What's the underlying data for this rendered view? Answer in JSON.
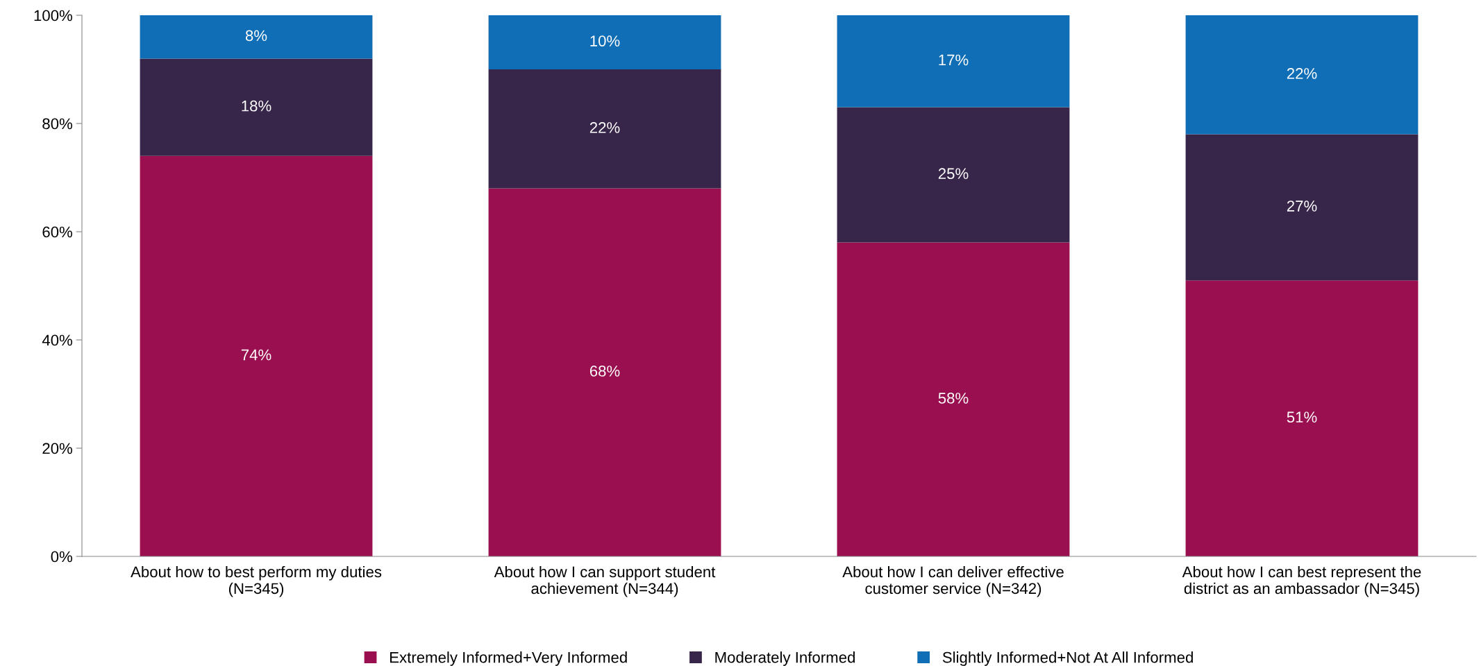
{
  "chart_data": {
    "type": "bar",
    "stacked": true,
    "categories": [
      "About how to best perform my duties\n(N=345)",
      "About how I can support student\nachievement (N=344)",
      "About how I can deliver effective\ncustomer service (N=342)",
      "About how I can best represent the\ndistrict as an ambassador (N=345)"
    ],
    "series": [
      {
        "name": "Extremely Informed+Very Informed",
        "color": "#990f4f",
        "values": [
          74,
          68,
          58,
          51
        ],
        "value_labels": [
          "74%",
          "68%",
          "58%",
          "51%"
        ]
      },
      {
        "name": "Moderately Informed",
        "color": "#37254a",
        "values": [
          18,
          22,
          25,
          27
        ],
        "value_labels": [
          "18%",
          "22%",
          "25%",
          "27%"
        ]
      },
      {
        "name": "Slightly Informed+Not At All Informed",
        "color": "#0f6eb5",
        "values": [
          8,
          10,
          17,
          22
        ],
        "value_labels": [
          "8%",
          "10%",
          "17%",
          "22%"
        ]
      }
    ],
    "ylim": [
      0,
      100
    ],
    "yticks": [
      {
        "value": 0,
        "label": "0%"
      },
      {
        "value": 20,
        "label": "20%"
      },
      {
        "value": 40,
        "label": "40%"
      },
      {
        "value": 60,
        "label": "60%"
      },
      {
        "value": 80,
        "label": "80%"
      },
      {
        "value": 100,
        "label": "100%"
      }
    ],
    "grid": false,
    "legend": "bottom"
  }
}
